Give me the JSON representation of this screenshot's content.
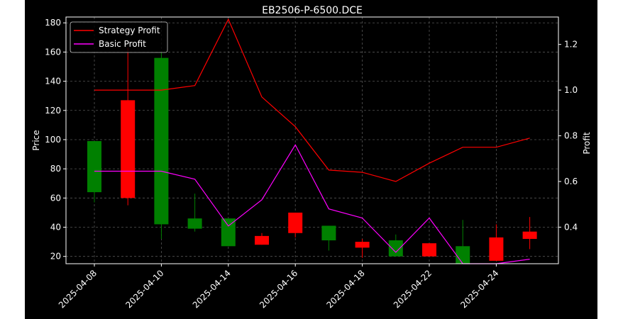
{
  "chart_data": {
    "type": "candlestick",
    "title": "EB2506-P-6500.DCE",
    "ylabel_left": "Price",
    "ylabel_right": "Profit",
    "ylim_left": [
      15,
      184
    ],
    "ylim_right": [
      0.24,
      1.32
    ],
    "yticks_left": [
      20,
      40,
      60,
      80,
      100,
      120,
      140,
      160,
      180
    ],
    "yticks_right": [
      0.4,
      0.6,
      0.8,
      1.0,
      1.2
    ],
    "ytick_labels_right": [
      "0.4",
      "0.6",
      "0.8",
      "1.0",
      "1.2"
    ],
    "x_tick_labels": [
      "2025-04-08",
      "2025-04-10",
      "2025-04-14",
      "2025-04-16",
      "2025-04-18",
      "2025-04-22",
      "2025-04-24"
    ],
    "x_tick_positions": [
      0,
      2,
      4,
      6,
      8,
      10,
      12
    ],
    "grid": true,
    "legend_position": "top-left",
    "candles": [
      {
        "i": 0,
        "open": 64,
        "close": 99,
        "high": 99,
        "low": 57,
        "color": "green"
      },
      {
        "i": 1,
        "open": 127,
        "close": 60,
        "high": 163,
        "low": 55,
        "color": "red"
      },
      {
        "i": 2,
        "open": 42,
        "close": 156,
        "high": 160,
        "low": 32,
        "color": "green"
      },
      {
        "i": 3,
        "open": 39,
        "close": 46,
        "high": 63,
        "low": 37,
        "color": "green"
      },
      {
        "i": 4,
        "open": 27,
        "close": 46,
        "high": 46,
        "low": 27,
        "color": "green"
      },
      {
        "i": 5,
        "open": 34,
        "close": 28,
        "high": 36,
        "low": 28,
        "color": "red"
      },
      {
        "i": 6,
        "open": 50,
        "close": 36,
        "high": 50,
        "low": 33,
        "color": "red"
      },
      {
        "i": 7,
        "open": 31,
        "close": 41,
        "high": 41,
        "low": 24,
        "color": "green"
      },
      {
        "i": 8,
        "open": 30,
        "close": 26,
        "high": 32,
        "low": 19,
        "color": "red"
      },
      {
        "i": 9,
        "open": 20,
        "close": 31,
        "high": 35,
        "low": 20,
        "color": "green"
      },
      {
        "i": 10,
        "open": 29,
        "close": 20,
        "high": 29,
        "low": 20,
        "color": "red"
      },
      {
        "i": 11,
        "open": 15,
        "close": 27,
        "high": 45,
        "low": 15,
        "color": "green"
      },
      {
        "i": 12,
        "open": 33,
        "close": 17,
        "high": 42,
        "low": 17,
        "color": "red"
      },
      {
        "i": 13,
        "open": 37,
        "close": 32,
        "high": 47,
        "low": 25,
        "color": "red"
      }
    ],
    "series": [
      {
        "name": "Strategy Profit",
        "color": "#ff0000",
        "axis": "right",
        "x": [
          0,
          1,
          2,
          3,
          4,
          5,
          6,
          7,
          8,
          9,
          10,
          11,
          12,
          13
        ],
        "values": [
          1.0,
          1.0,
          1.0,
          1.02,
          1.31,
          0.97,
          0.84,
          0.65,
          0.64,
          0.6,
          0.68,
          0.75,
          0.75,
          0.79
        ]
      },
      {
        "name": "Basic Profit",
        "color": "#ff00ff",
        "axis": "right",
        "x": [
          0,
          1,
          2,
          3,
          4,
          5,
          6,
          7,
          8,
          9,
          10,
          11,
          12,
          13
        ],
        "values": [
          0.645,
          0.645,
          0.645,
          0.61,
          0.405,
          0.52,
          0.76,
          0.48,
          0.44,
          0.29,
          0.44,
          0.24,
          0.24,
          0.26
        ]
      }
    ]
  }
}
